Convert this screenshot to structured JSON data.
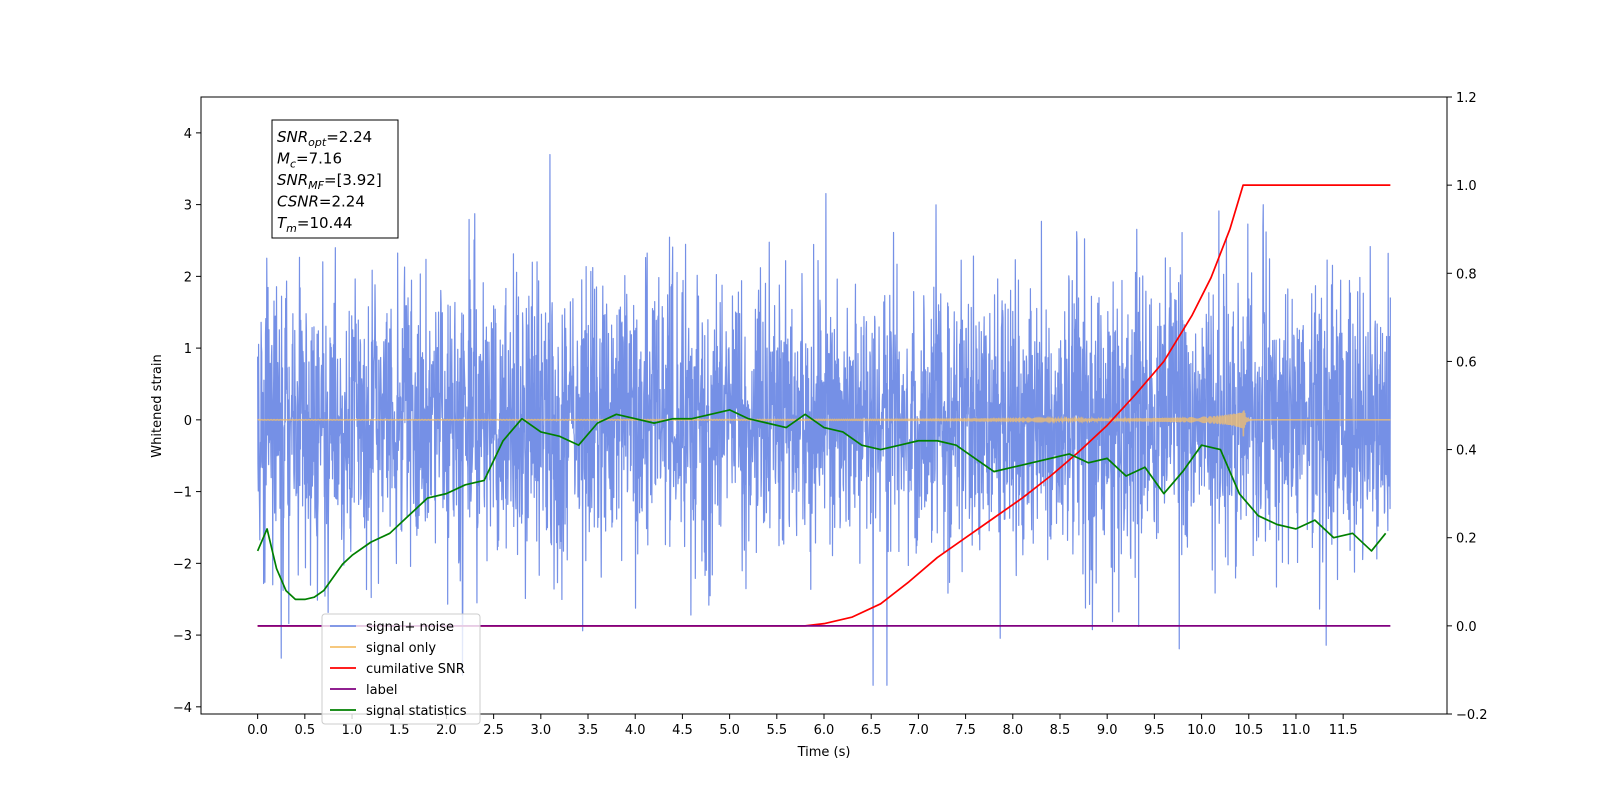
{
  "chart_data": {
    "type": "line",
    "xlabel": "Time (s)",
    "ylabel": "Whitened strain",
    "y2label": "",
    "xlim": [
      -0.6,
      12.6
    ],
    "ylim": [
      -4.1,
      4.5
    ],
    "y2lim": [
      -0.2,
      1.2
    ],
    "grid": false,
    "legend_position": "lower-left",
    "x_ticks": [
      "0.0",
      "0.5",
      "1.0",
      "1.5",
      "2.0",
      "2.5",
      "3.0",
      "3.5",
      "4.0",
      "4.5",
      "5.0",
      "5.5",
      "6.0",
      "6.5",
      "7.0",
      "7.5",
      "8.0",
      "8.5",
      "9.0",
      "9.5",
      "10.0",
      "10.5",
      "11.0",
      "11.5"
    ],
    "y_ticks": [
      "4",
      "3",
      "2",
      "1",
      "0",
      "−1",
      "−2",
      "−3",
      "−4"
    ],
    "y2_ticks": [
      "1.2",
      "1.0",
      "0.8",
      "0.6",
      "0.4",
      "0.2",
      "0.0",
      "−0.2"
    ],
    "annotation": [
      {
        "base": "SNR",
        "sub": "opt",
        "rest": "=2.24"
      },
      {
        "base": "M",
        "sub": "c",
        "rest": "=7.16"
      },
      {
        "base": "SNR",
        "sub": "MF",
        "rest": "=[3.92]"
      },
      {
        "base": "CSNR",
        "sub": "",
        "rest": "=2.24"
      },
      {
        "base": "T",
        "sub": "m",
        "rest": "=10.44"
      }
    ],
    "series": [
      {
        "name": "signal+ noise",
        "color": "#7590e6",
        "axis": "left",
        "t_start": 0.0,
        "t_end": 12.0,
        "std": 1.0,
        "y_range_approx": [
          -3.7,
          4.1
        ]
      },
      {
        "name": "signal only",
        "color": "#f5c06b",
        "axis": "left",
        "t_start": 0.0,
        "t_end": 10.44,
        "chirp_peak_amplitude": 0.28,
        "merger_time": 10.44
      },
      {
        "name": "cumilative SNR",
        "color": "#ff0000",
        "axis": "right",
        "x": [
          0.0,
          5.0,
          5.8,
          6.0,
          6.3,
          6.6,
          6.9,
          7.2,
          7.5,
          7.8,
          8.1,
          8.4,
          8.7,
          9.0,
          9.3,
          9.6,
          9.9,
          10.1,
          10.3,
          10.44,
          12.0
        ],
        "y": [
          0.0,
          0.0,
          0.0,
          0.005,
          0.02,
          0.05,
          0.1,
          0.155,
          0.2,
          0.245,
          0.29,
          0.34,
          0.395,
          0.455,
          0.525,
          0.6,
          0.705,
          0.79,
          0.9,
          1.0,
          1.0
        ]
      },
      {
        "name": "label",
        "color": "#800080",
        "axis": "right",
        "x": [
          0.0,
          12.0
        ],
        "y": [
          0.0,
          0.0
        ]
      },
      {
        "name": "signal statistics",
        "color": "#008000",
        "axis": "right",
        "x": [
          0.0,
          0.1,
          0.2,
          0.3,
          0.4,
          0.5,
          0.6,
          0.7,
          0.8,
          0.9,
          1.0,
          1.2,
          1.4,
          1.6,
          1.8,
          2.0,
          2.2,
          2.4,
          2.6,
          2.8,
          3.0,
          3.2,
          3.4,
          3.6,
          3.8,
          4.0,
          4.2,
          4.4,
          4.6,
          4.8,
          5.0,
          5.2,
          5.4,
          5.6,
          5.8,
          6.0,
          6.2,
          6.4,
          6.6,
          6.8,
          7.0,
          7.2,
          7.4,
          7.6,
          7.8,
          8.0,
          8.2,
          8.4,
          8.6,
          8.8,
          9.0,
          9.2,
          9.4,
          9.6,
          9.8,
          10.0,
          10.2,
          10.4,
          10.6,
          10.8,
          11.0,
          11.2,
          11.4,
          11.6,
          11.8,
          11.95
        ],
        "y": [
          0.17,
          0.22,
          0.13,
          0.08,
          0.06,
          0.06,
          0.065,
          0.08,
          0.11,
          0.14,
          0.16,
          0.19,
          0.21,
          0.25,
          0.29,
          0.3,
          0.32,
          0.33,
          0.42,
          0.47,
          0.44,
          0.43,
          0.41,
          0.46,
          0.48,
          0.47,
          0.46,
          0.47,
          0.47,
          0.48,
          0.49,
          0.47,
          0.46,
          0.45,
          0.48,
          0.45,
          0.44,
          0.41,
          0.4,
          0.41,
          0.42,
          0.42,
          0.41,
          0.38,
          0.35,
          0.36,
          0.37,
          0.38,
          0.39,
          0.37,
          0.38,
          0.34,
          0.36,
          0.3,
          0.35,
          0.41,
          0.4,
          0.3,
          0.25,
          0.23,
          0.22,
          0.24,
          0.2,
          0.21,
          0.17,
          0.21
        ]
      }
    ]
  }
}
